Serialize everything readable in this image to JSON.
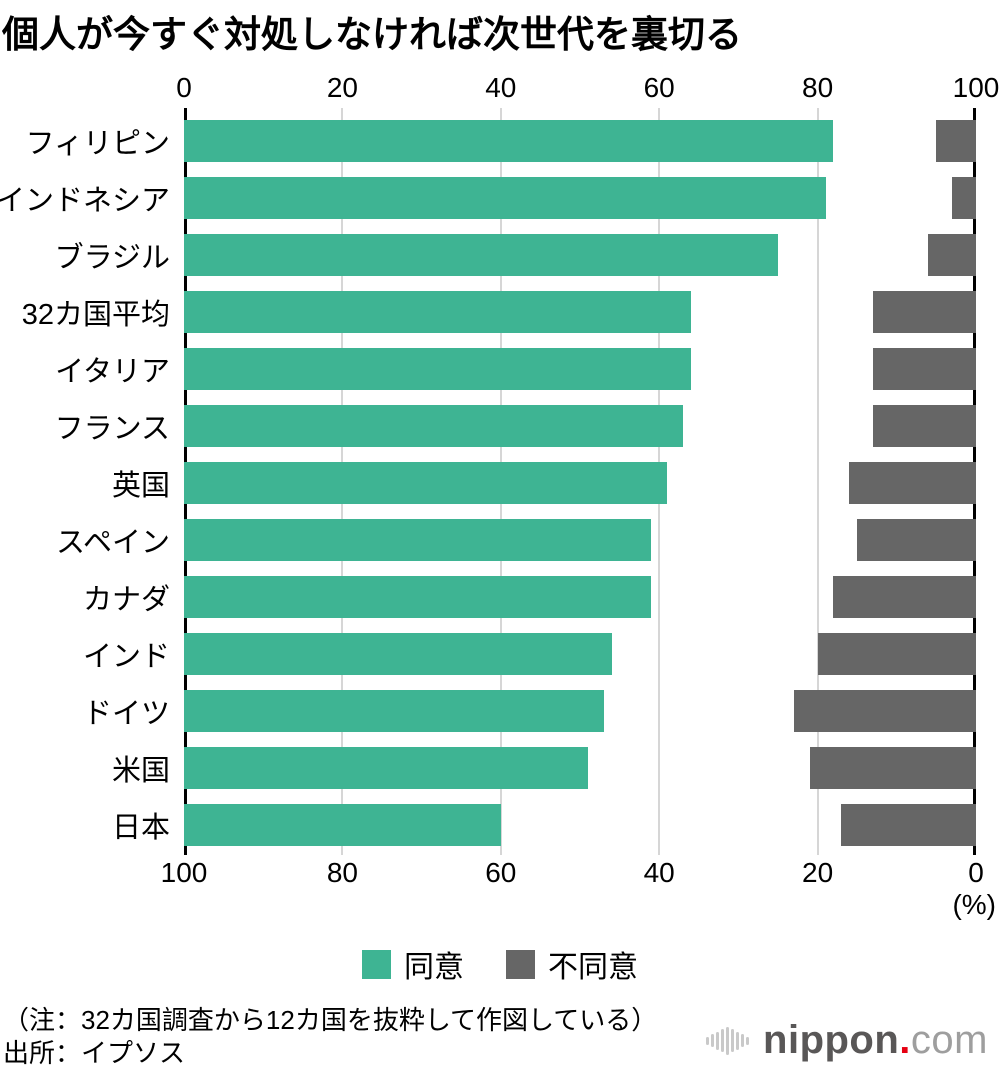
{
  "title": "個人が今すぐ対処しなければ次世代を裏切る",
  "chart_data": {
    "type": "bar",
    "orientation": "horizontal-diverging",
    "title": "個人が今すぐ対処しなければ次世代を裏切る",
    "categories": [
      "フィリピン",
      "インドネシア",
      "ブラジル",
      "32カ国平均",
      "イタリア",
      "フランス",
      "英国",
      "スペイン",
      "カナダ",
      "インド",
      "ドイツ",
      "米国",
      "日本"
    ],
    "series": [
      {
        "name": "同意",
        "color": "#3eb493",
        "values": [
          82,
          81,
          75,
          64,
          64,
          63,
          61,
          59,
          59,
          54,
          53,
          51,
          40
        ]
      },
      {
        "name": "不同意",
        "color": "#666666",
        "values": [
          5,
          3,
          6,
          13,
          13,
          13,
          16,
          15,
          18,
          20,
          23,
          21,
          17
        ]
      }
    ],
    "xlim": [
      0,
      100
    ],
    "top_axis_tick_labels": [
      "0",
      "20",
      "40",
      "60",
      "80",
      "100"
    ],
    "bottom_axis_tick_labels": [
      "100",
      "80",
      "60",
      "40",
      "20",
      "0"
    ],
    "tick_positions_percent": [
      0,
      20,
      40,
      60,
      80,
      100
    ],
    "unit_label": "(%)",
    "grid": true,
    "gridline_color": "#d6d6d6",
    "axis_line_color": "#000000",
    "legend_position": "bottom-center"
  },
  "legend": [
    {
      "label": "同意",
      "color": "#3eb493"
    },
    {
      "label": "不同意",
      "color": "#666666"
    }
  ],
  "notes": {
    "line1": "（注：32カ国調査から12カ国を抜粋して作図している）",
    "line2": "出所：イプソス"
  },
  "logo": {
    "name": "nippon",
    "dot": ".",
    "tld": "com"
  }
}
